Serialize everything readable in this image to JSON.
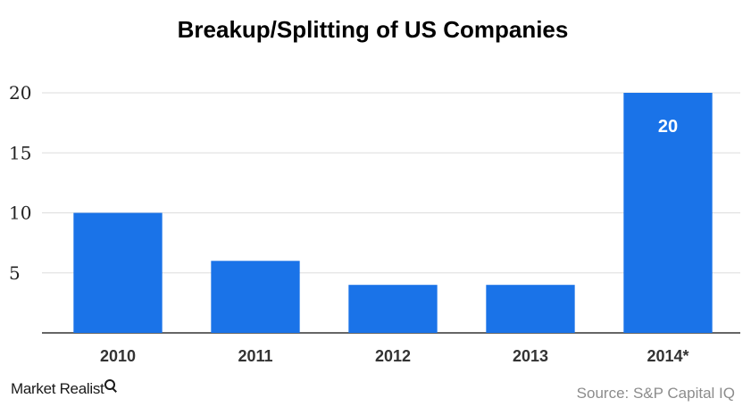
{
  "chart_data": {
    "type": "bar",
    "title": "Breakup/Splitting of US Companies",
    "categories": [
      "2010",
      "2011",
      "2012",
      "2013",
      "2014*"
    ],
    "values": [
      10,
      6,
      4,
      4,
      20
    ],
    "data_labels": [
      null,
      null,
      null,
      null,
      "20"
    ],
    "ylim": [
      0,
      20
    ],
    "yticks": [
      "20",
      "15",
      "10",
      "5"
    ],
    "xlabel": "",
    "ylabel": "",
    "grid": true,
    "legend": "none",
    "bar_color": "#1a73e8",
    "label_color": "#ffffff",
    "grid_color": "#dddddd",
    "axis_color": "#333333"
  },
  "footer": {
    "brand": "Market Realist",
    "brand_icon": "magnifier-icon",
    "source": "Source: S&P Capital IQ"
  }
}
